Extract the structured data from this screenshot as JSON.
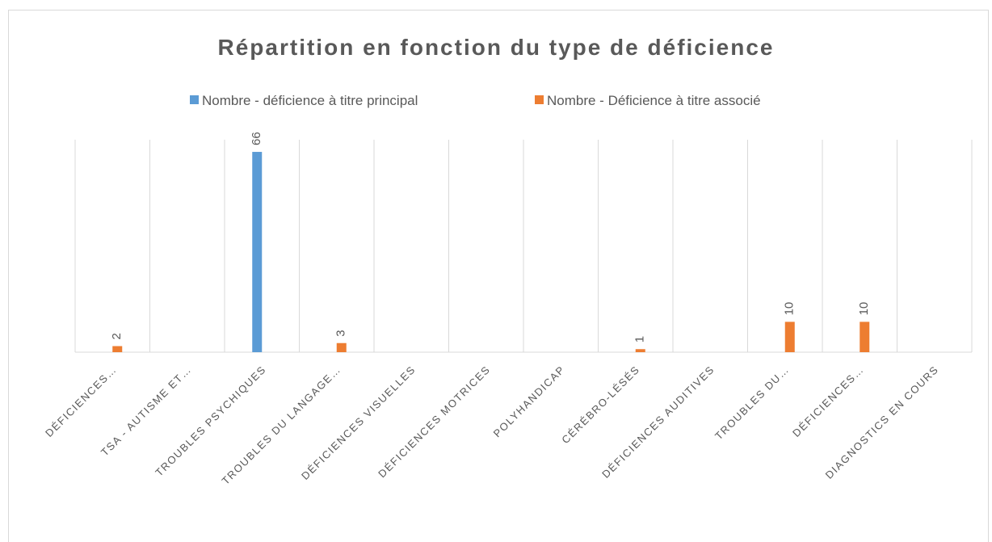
{
  "chart_data": {
    "type": "bar",
    "title": "Répartition en fonction du type de déficience",
    "categories": [
      "DÉFICIENCES…",
      "TSA - AUTISME ET…",
      "TROUBLES PSYCHIQUES",
      "TROUBLES DU LANGAGE…",
      "DÉFICIENCES VISUELLES",
      "DÉFICIENCES MOTRICES",
      "POLYHANDICAP",
      "CÉRÉBRO-LÉSÉS",
      "DÉFICIENCES AUDITIVES",
      "TROUBLES DU…",
      "DÉFICIENCES…",
      "DIAGNOSTICS EN COURS"
    ],
    "series": [
      {
        "name": "Nombre - déficience à titre principal",
        "color": "#5b9bd5",
        "values": [
          null,
          null,
          66,
          null,
          null,
          null,
          null,
          null,
          null,
          null,
          null,
          null
        ]
      },
      {
        "name": "Nombre - Déficience à titre associé",
        "color": "#ed7d31",
        "values": [
          2,
          null,
          null,
          3,
          null,
          null,
          null,
          1,
          null,
          10,
          10,
          null
        ]
      }
    ],
    "ylim": [
      0,
      70
    ],
    "grid": true,
    "legend": "top"
  }
}
